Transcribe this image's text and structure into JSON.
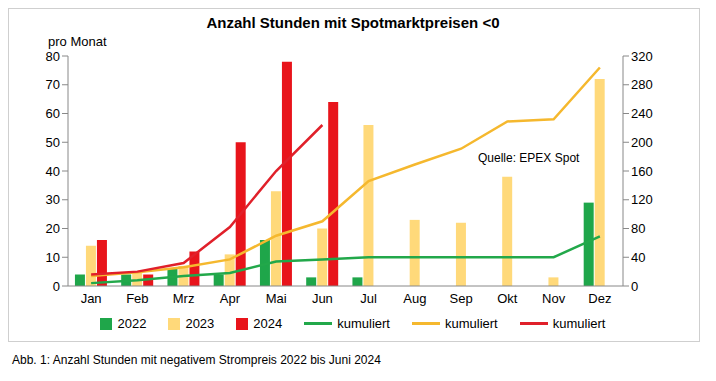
{
  "chart_data": {
    "type": "bar",
    "title": "Anzahl Stunden mit Spotmarktpreisen <0",
    "y_label": "pro Monat",
    "annotations": [
      "Quelle: EPEX Spot"
    ],
    "caption": "Abb. 1: Anzahl Stunden mit negativem Strompreis 2022 bis Juni 2024",
    "categories": [
      "Jan",
      "Feb",
      "Mrz",
      "Apr",
      "Mai",
      "Jun",
      "Jul",
      "Aug",
      "Sep",
      "Okt",
      "Nov",
      "Dez"
    ],
    "series": [
      {
        "name": "2022",
        "type": "bar",
        "color": "#1fa64a",
        "values": [
          4,
          4,
          6,
          4,
          16,
          3,
          3,
          0,
          0,
          0,
          0,
          29
        ]
      },
      {
        "name": "2023",
        "type": "bar",
        "color": "#ffd97a",
        "values": [
          14,
          5,
          7,
          11,
          33,
          20,
          56,
          23,
          22,
          38,
          3,
          72
        ]
      },
      {
        "name": "2024",
        "type": "bar",
        "color": "#e8141b",
        "values": [
          16,
          4,
          12,
          50,
          78,
          64,
          null,
          null,
          null,
          null,
          null,
          null
        ]
      },
      {
        "name": "kumuliert",
        "type": "line",
        "axis": "y2",
        "color": "#22a84a",
        "values": [
          4,
          8,
          14,
          18,
          34,
          37,
          40,
          40,
          40,
          40,
          40,
          69
        ]
      },
      {
        "name": "kumuliert",
        "type": "line",
        "axis": "y2",
        "color": "#f5b82e",
        "values": [
          14,
          19,
          26,
          37,
          70,
          90,
          146,
          169,
          191,
          229,
          232,
          304
        ]
      },
      {
        "name": "kumuliert",
        "type": "line",
        "axis": "y2",
        "color": "#e0202a",
        "values": [
          16,
          20,
          32,
          82,
          160,
          224,
          null,
          null,
          null,
          null,
          null,
          null
        ]
      }
    ],
    "ylim": [
      0,
      80
    ],
    "yticks": [
      0,
      10,
      20,
      30,
      40,
      50,
      60,
      70,
      80
    ],
    "y2lim": [
      0,
      320
    ],
    "y2ticks": [
      0,
      40,
      80,
      120,
      160,
      200,
      240,
      280,
      320
    ],
    "grid": false,
    "legend": "bottom"
  }
}
